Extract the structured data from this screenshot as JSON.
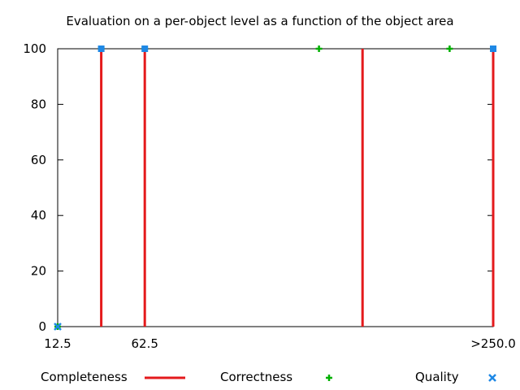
{
  "chart_data": {
    "type": "scatter",
    "title": "Evaluation on a per-object level as a function of the object area",
    "xlabel": "",
    "ylabel": "",
    "xlim": [
      12.5,
      262.5
    ],
    "ylim": [
      0,
      100
    ],
    "x_ticks": [
      {
        "value": 12.5,
        "label": "12.5"
      },
      {
        "value": 62.5,
        "label": "62.5"
      },
      {
        "value": 262.5,
        "label": ">250.0"
      }
    ],
    "y_ticks": [
      0,
      20,
      40,
      60,
      80,
      100
    ],
    "grid": false,
    "legend_position": "bottom",
    "series": [
      {
        "name": "Completeness",
        "style": "impulses",
        "color": "#e41a1c",
        "points": [
          {
            "x": 12.5,
            "y": 0
          },
          {
            "x": 37.5,
            "y": 100
          },
          {
            "x": 62.5,
            "y": 100
          },
          {
            "x": 187.5,
            "y": 100
          },
          {
            "x": 262.5,
            "y": 100
          }
        ]
      },
      {
        "name": "Correctness",
        "style": "points-plus",
        "color": "#00b000",
        "points": [
          {
            "x": 12.5,
            "y": 0
          },
          {
            "x": 37.5,
            "y": 100
          },
          {
            "x": 62.5,
            "y": 100
          },
          {
            "x": 162.5,
            "y": 100
          },
          {
            "x": 237.5,
            "y": 100
          },
          {
            "x": 262.5,
            "y": 100
          }
        ]
      },
      {
        "name": "Quality",
        "style": "points-x",
        "color": "#1e88e5",
        "points": [
          {
            "x": 12.5,
            "y": 0
          },
          {
            "x": 37.5,
            "y": 100
          },
          {
            "x": 62.5,
            "y": 100
          },
          {
            "x": 262.5,
            "y": 100
          }
        ]
      }
    ]
  }
}
